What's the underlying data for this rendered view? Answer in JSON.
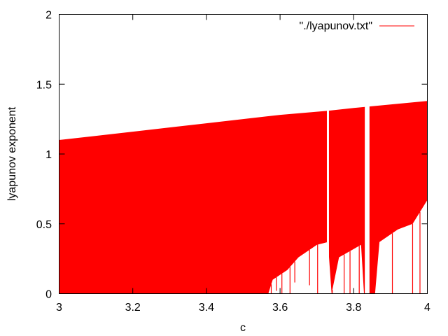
{
  "chart_data": {
    "type": "line",
    "xlabel": "c",
    "ylabel": "lyapunov exponent",
    "xlim": [
      3,
      4
    ],
    "ylim": [
      0,
      2
    ],
    "x_ticks": [
      "3",
      "3.2",
      "3.4",
      "3.6",
      "3.8",
      "4"
    ],
    "y_ticks": [
      "0",
      "0.5",
      "1",
      "1.5",
      "2"
    ],
    "grid": false,
    "legend_position": "top-right",
    "series": [
      {
        "name": "\"./lyapunov.txt\"",
        "color": "#ff0000",
        "upper_envelope": [
          [
            3.0,
            1.1
          ],
          [
            3.2,
            1.16
          ],
          [
            3.4,
            1.22
          ],
          [
            3.6,
            1.28
          ],
          [
            3.73,
            1.31
          ],
          [
            3.8,
            1.33
          ],
          [
            4.0,
            1.38
          ]
        ],
        "lower_envelope": [
          [
            3.0,
            0.0
          ],
          [
            3.568,
            0.0
          ],
          [
            3.58,
            0.1
          ],
          [
            3.62,
            0.17
          ],
          [
            3.65,
            0.26
          ],
          [
            3.7,
            0.35
          ],
          [
            3.73,
            0.37
          ],
          [
            3.74,
            0.0
          ],
          [
            3.76,
            0.26
          ],
          [
            3.82,
            0.35
          ],
          [
            3.828,
            0.0
          ],
          [
            3.858,
            0.0
          ],
          [
            3.87,
            0.37
          ],
          [
            3.92,
            0.46
          ],
          [
            3.96,
            0.5
          ],
          [
            4.0,
            0.67
          ]
        ]
      }
    ],
    "gaps": [
      3.73,
      3.833,
      3.838,
      3.84
    ],
    "dips": [
      {
        "x": 3.576,
        "y": 0.0
      },
      {
        "x": 3.59,
        "y": 0.02
      },
      {
        "x": 3.605,
        "y": 0.0
      },
      {
        "x": 3.627,
        "y": 0.0
      },
      {
        "x": 3.64,
        "y": 0.08
      },
      {
        "x": 3.68,
        "y": 0.06
      },
      {
        "x": 3.702,
        "y": 0.0
      },
      {
        "x": 3.742,
        "y": 0.0
      },
      {
        "x": 3.774,
        "y": 0.0
      },
      {
        "x": 3.79,
        "y": 0.0
      },
      {
        "x": 3.815,
        "y": 0.0
      },
      {
        "x": 3.828,
        "y": 0.0
      },
      {
        "x": 3.905,
        "y": 0.0
      },
      {
        "x": 3.96,
        "y": 0.0
      },
      {
        "x": 3.98,
        "y": 0.0
      }
    ]
  }
}
